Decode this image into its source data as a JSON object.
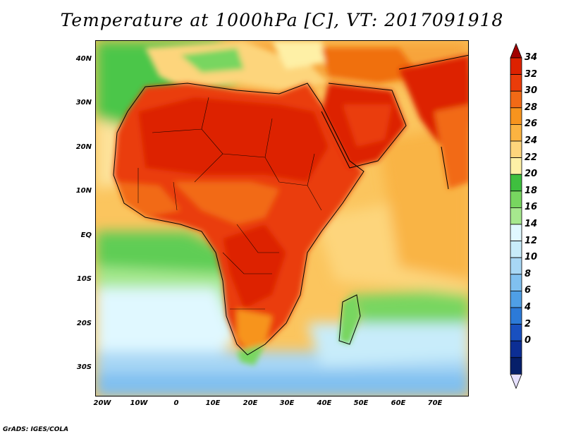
{
  "title": "Temperature at 1000hPa [C], VT: 2017091918",
  "credit": "GrADS: IGES/COLA",
  "map": {
    "region": "Africa",
    "variable": "Temperature at 1000hPa",
    "units": "C",
    "lat_ticks": [
      "40N",
      "30N",
      "20N",
      "10N",
      "EQ",
      "10S",
      "20S",
      "30S"
    ],
    "lon_ticks": [
      "20W",
      "10W",
      "0",
      "10E",
      "20E",
      "30E",
      "40E",
      "50E",
      "60E",
      "70E"
    ]
  },
  "colorbar": {
    "labels": [
      "34",
      "32",
      "30",
      "28",
      "26",
      "24",
      "22",
      "20",
      "18",
      "16",
      "14",
      "12",
      "10",
      "8",
      "6",
      "4",
      "2",
      "0"
    ],
    "colors": [
      "#dd2200",
      "#ea3c0a",
      "#f26a16",
      "#f7941e",
      "#fbb341",
      "#fdd57c",
      "#fef0a6",
      "#3fbf3f",
      "#78d660",
      "#a6e88e",
      "#e0f8ff",
      "#c8ecfa",
      "#a8d7f5",
      "#80c0f0",
      "#4f9fe6",
      "#2c7ad8",
      "#1950c0",
      "#0c2e94",
      "#061f6a"
    ],
    "over_color": "#a20000",
    "under_color": "#e6e0ff"
  }
}
